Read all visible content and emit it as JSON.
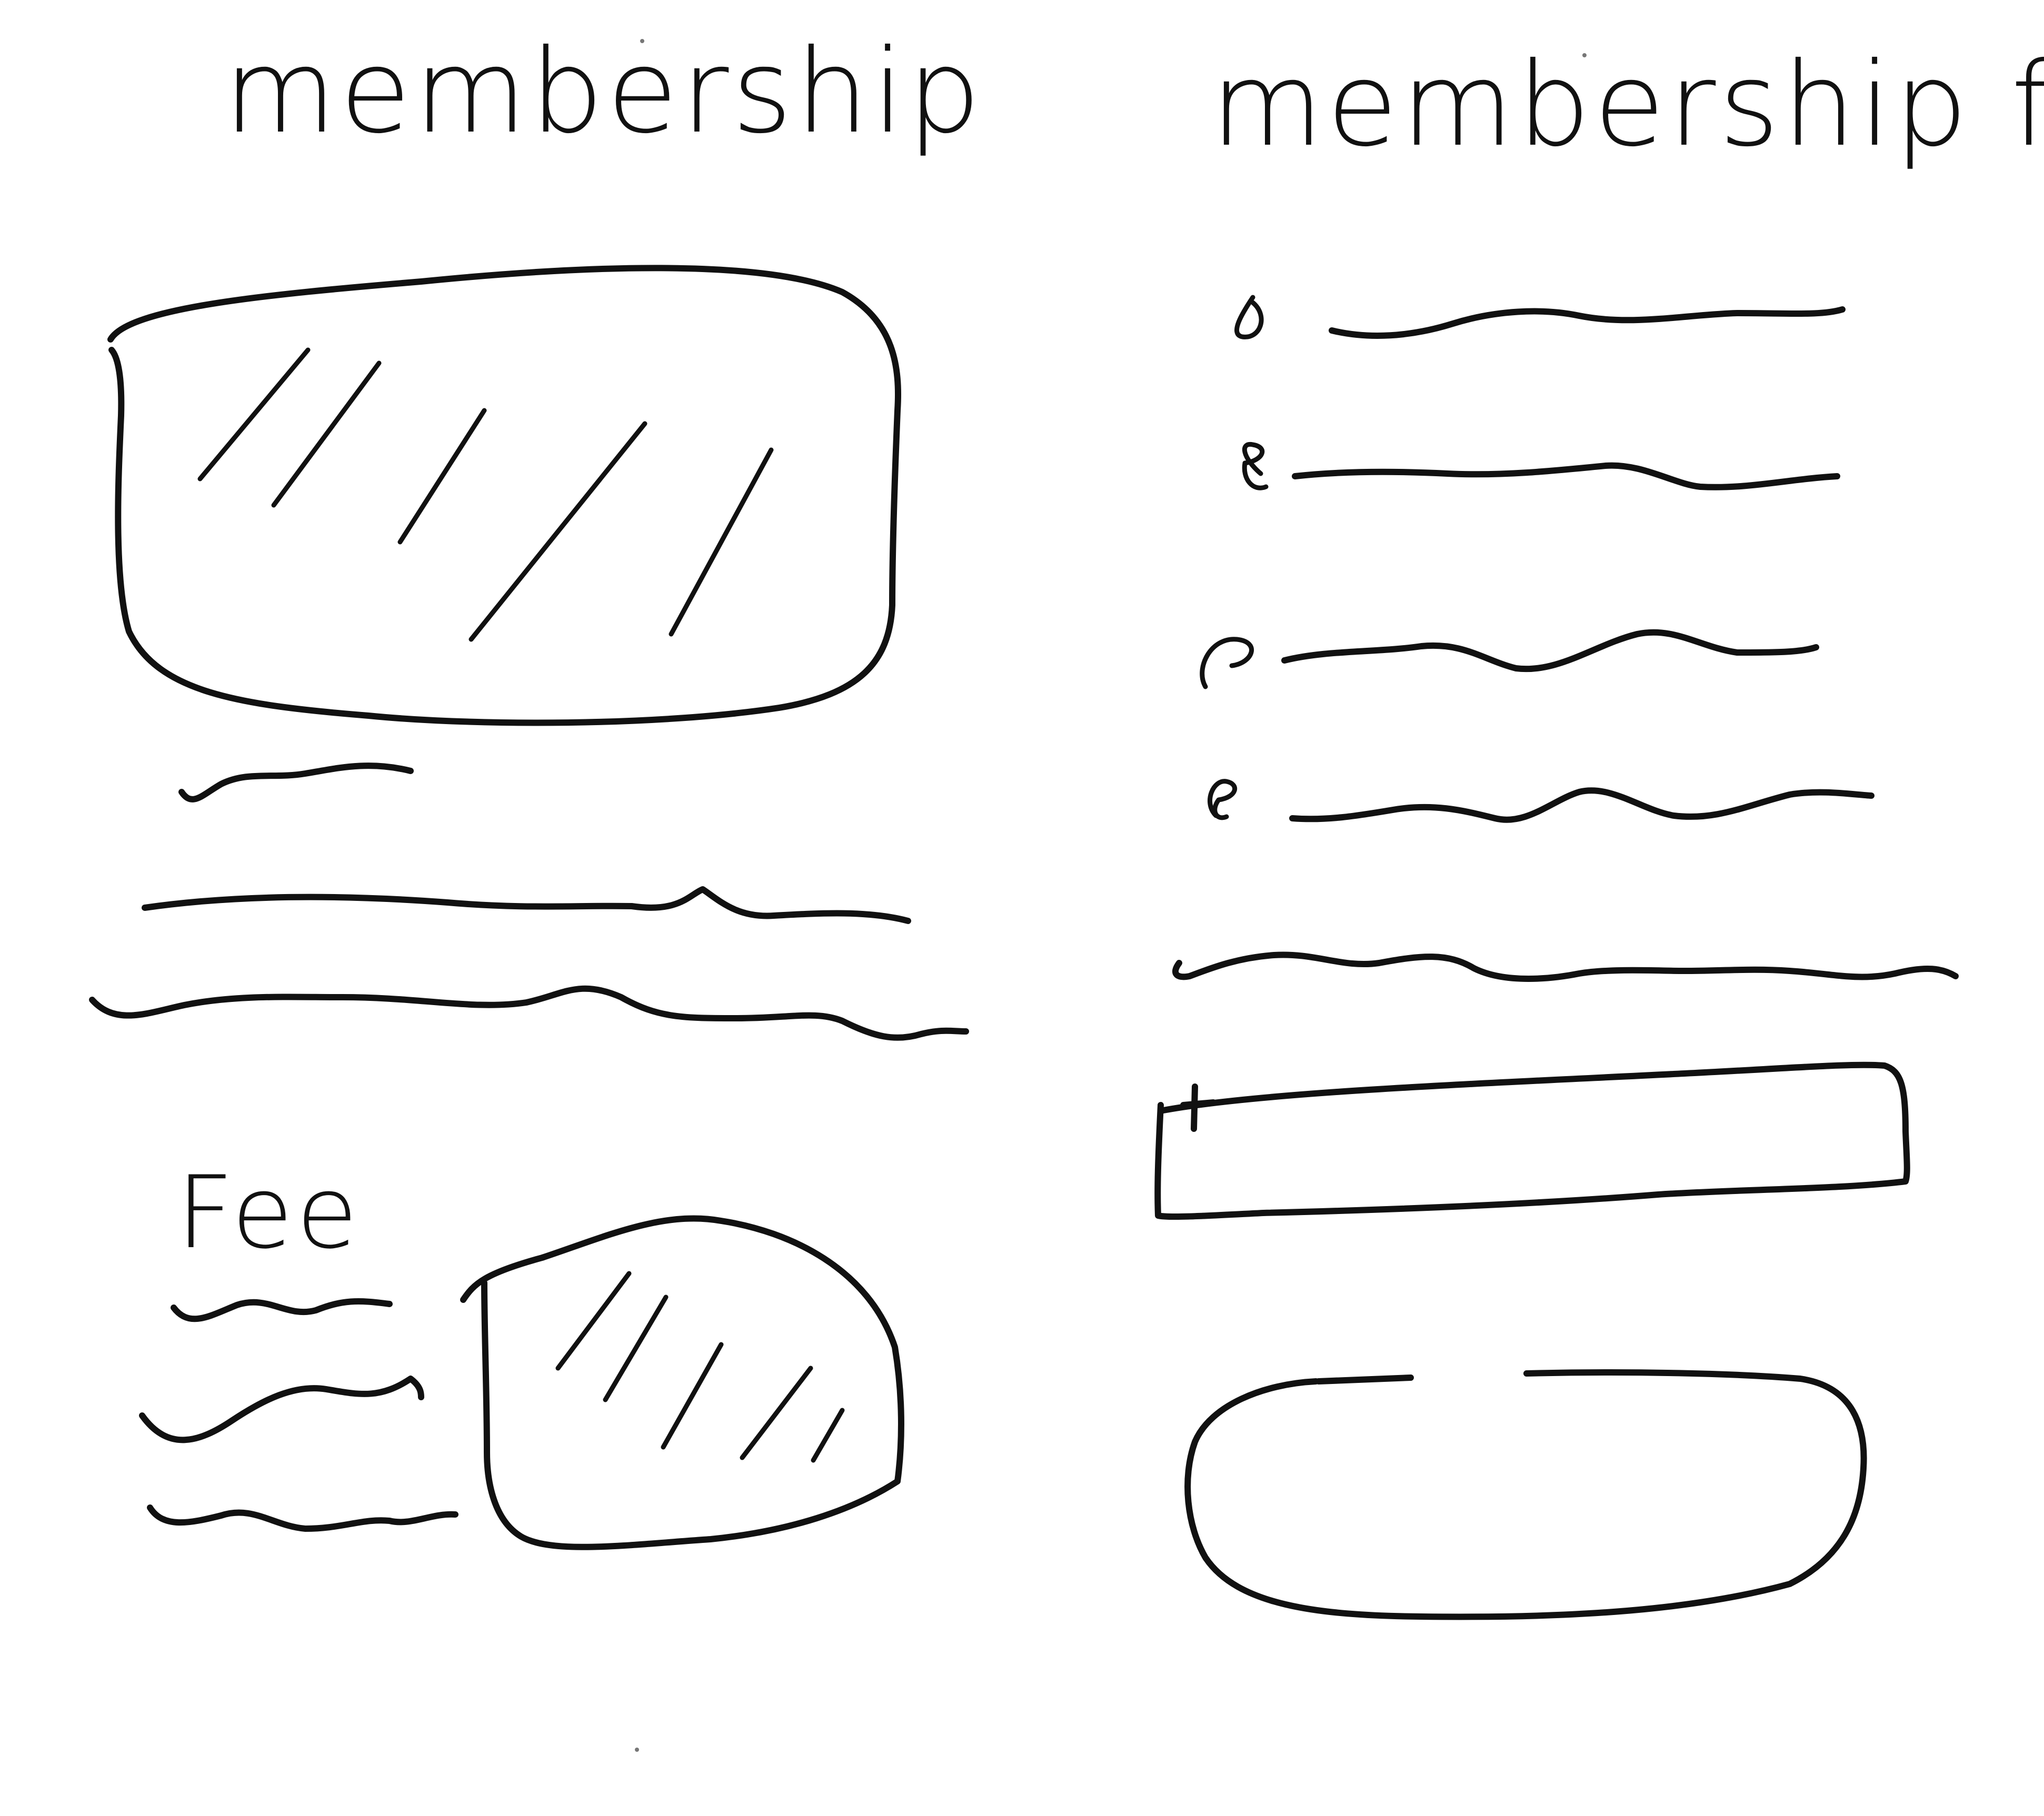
{
  "left_panel": {
    "heading": "membership",
    "fee_heading": "Fee"
  },
  "right_panel": {
    "heading": "membership form"
  }
}
